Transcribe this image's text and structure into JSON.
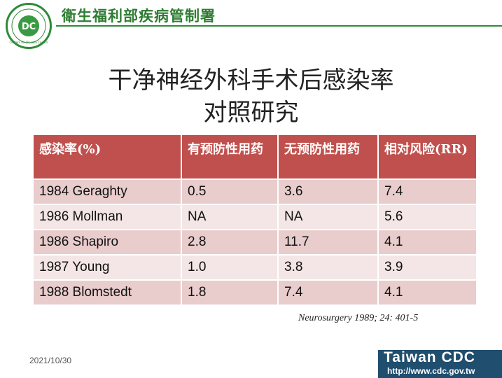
{
  "header": {
    "org_name": "衛生福利部疾病管制署",
    "logo_text": "Centers for Disease Control",
    "logo_letters": "DC",
    "accent": "#2e8b3a"
  },
  "title": {
    "line1": "干净神经外科手术后感染率",
    "line2": "对照研究"
  },
  "table": {
    "header_color": "#c0504d",
    "columns": [
      "感染率(%)",
      "有预防性用药",
      "无预防性用药",
      "相对风险(RR)"
    ],
    "rows": [
      [
        "1984 Geraghty",
        "0.5",
        "3.6",
        "7.4"
      ],
      [
        "1986 Mollman",
        "NA",
        "NA",
        "5.6"
      ],
      [
        "1986 Shapiro",
        "2.8",
        "11.7",
        "4.1"
      ],
      [
        "1987 Young",
        "1.0",
        "3.8",
        "3.9"
      ],
      [
        "1988 Blomstedt",
        "1.8",
        "7.4",
        "4.1"
      ]
    ]
  },
  "citation": "Neurosurgery 1989; 24: 401-5",
  "footer": {
    "date": "2021/10/30",
    "brand": "Taiwan CDC",
    "url": "http://www.cdc.gov.tw",
    "bar_color": "#1f4e6e"
  }
}
